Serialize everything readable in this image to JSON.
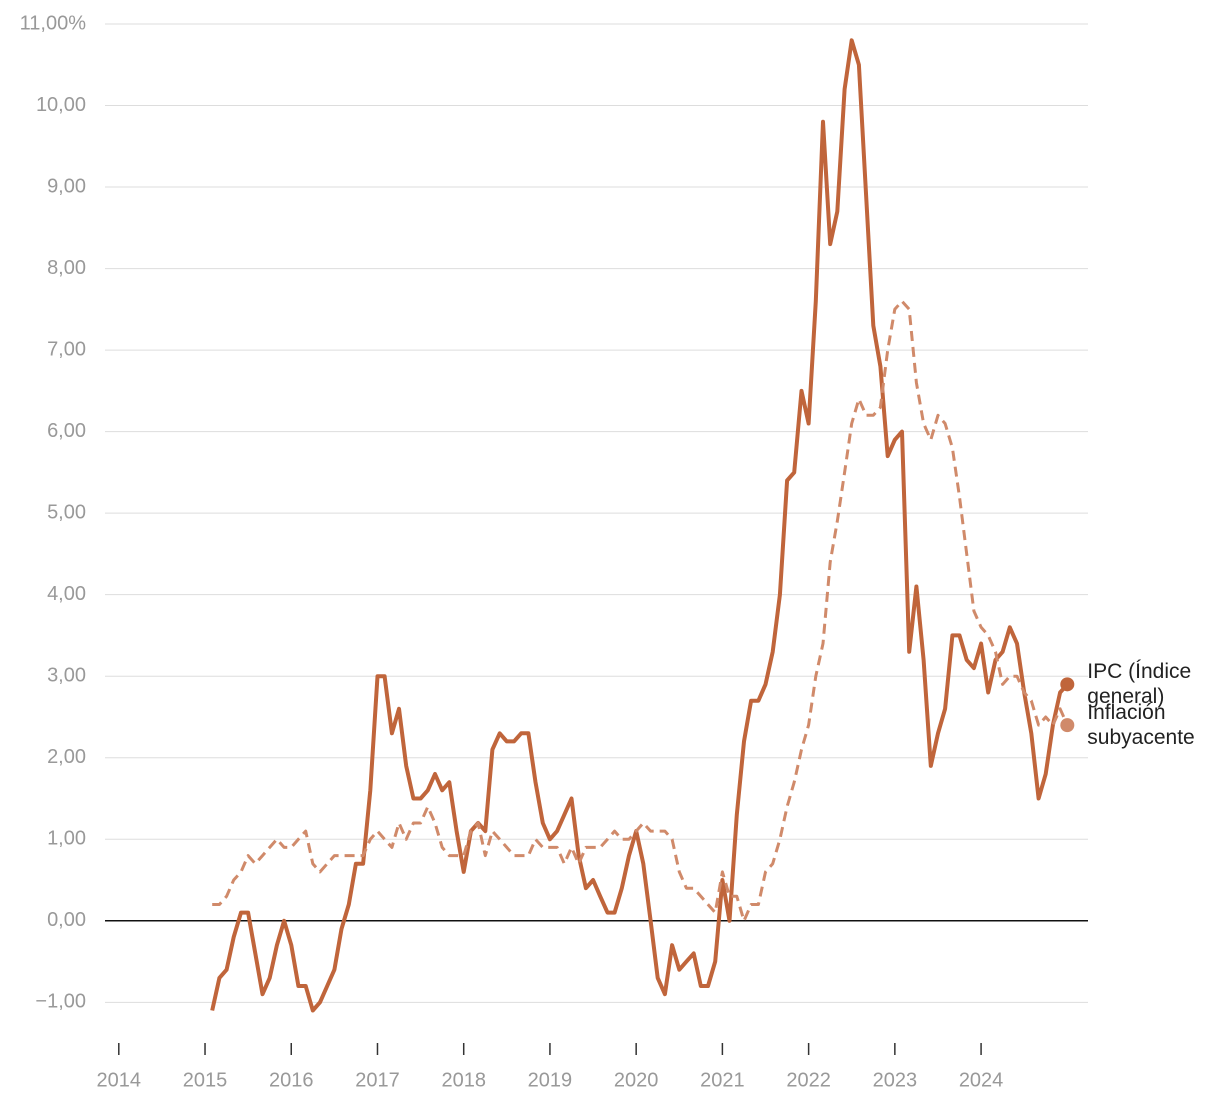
{
  "chart_data": {
    "type": "line",
    "x": [
      2015.083,
      2015.167,
      2015.25,
      2015.333,
      2015.417,
      2015.5,
      2015.583,
      2015.667,
      2015.75,
      2015.833,
      2015.917,
      2016,
      2016.083,
      2016.167,
      2016.25,
      2016.333,
      2016.417,
      2016.5,
      2016.583,
      2016.667,
      2016.75,
      2016.833,
      2016.917,
      2017,
      2017.083,
      2017.167,
      2017.25,
      2017.333,
      2017.417,
      2017.5,
      2017.583,
      2017.667,
      2017.75,
      2017.833,
      2017.917,
      2018,
      2018.083,
      2018.167,
      2018.25,
      2018.333,
      2018.417,
      2018.5,
      2018.583,
      2018.667,
      2018.75,
      2018.833,
      2018.917,
      2019,
      2019.083,
      2019.167,
      2019.25,
      2019.333,
      2019.417,
      2019.5,
      2019.583,
      2019.667,
      2019.75,
      2019.833,
      2019.917,
      2020,
      2020.083,
      2020.167,
      2020.25,
      2020.333,
      2020.417,
      2020.5,
      2020.583,
      2020.667,
      2020.75,
      2020.833,
      2020.917,
      2021,
      2021.083,
      2021.167,
      2021.25,
      2021.333,
      2021.417,
      2021.5,
      2021.583,
      2021.667,
      2021.75,
      2021.833,
      2021.917,
      2022,
      2022.083,
      2022.167,
      2022.25,
      2022.333,
      2022.417,
      2022.5,
      2022.583,
      2022.667,
      2022.75,
      2022.833,
      2022.917,
      2023,
      2023.083,
      2023.167,
      2023.25,
      2023.333,
      2023.417,
      2023.5,
      2023.583,
      2023.667,
      2023.75,
      2023.833,
      2023.917,
      2024,
      2024.083,
      2024.167,
      2024.25,
      2024.333,
      2024.417,
      2024.5,
      2024.583,
      2024.667,
      2024.75,
      2024.833,
      2024.917,
      2025
    ],
    "series": [
      {
        "name": "IPC (Índice general)",
        "color": "#c0653b",
        "dashed": false,
        "values": [
          -1.1,
          -0.7,
          -0.6,
          -0.2,
          0.1,
          0.1,
          -0.4,
          -0.9,
          -0.7,
          -0.3,
          0.0,
          -0.3,
          -0.8,
          -0.8,
          -1.1,
          -1.0,
          -0.8,
          -0.6,
          -0.1,
          0.2,
          0.7,
          0.7,
          1.6,
          3.0,
          3.0,
          2.3,
          2.6,
          1.9,
          1.5,
          1.5,
          1.6,
          1.8,
          1.6,
          1.7,
          1.1,
          0.6,
          1.1,
          1.2,
          1.1,
          2.1,
          2.3,
          2.2,
          2.2,
          2.3,
          2.3,
          1.7,
          1.2,
          1.0,
          1.1,
          1.3,
          1.5,
          0.8,
          0.4,
          0.5,
          0.3,
          0.1,
          0.1,
          0.4,
          0.8,
          1.1,
          0.7,
          0.0,
          -0.7,
          -0.9,
          -0.3,
          -0.6,
          -0.5,
          -0.4,
          -0.8,
          -0.8,
          -0.5,
          0.5,
          0.0,
          1.3,
          2.2,
          2.7,
          2.7,
          2.9,
          3.3,
          4.0,
          5.4,
          5.5,
          6.5,
          6.1,
          7.6,
          9.8,
          8.3,
          8.7,
          10.2,
          10.8,
          10.5,
          8.9,
          7.3,
          6.8,
          5.7,
          5.9,
          6.0,
          3.3,
          4.1,
          3.2,
          1.9,
          2.3,
          2.6,
          3.5,
          3.5,
          3.2,
          3.1,
          3.4,
          2.8,
          3.2,
          3.3,
          3.6,
          3.4,
          2.8,
          2.3,
          1.5,
          1.8,
          2.4,
          2.8,
          2.9
        ]
      },
      {
        "name": "Inflación subyacente",
        "color": "#d08a6a",
        "dashed": true,
        "values": [
          0.2,
          0.2,
          0.3,
          0.5,
          0.6,
          0.8,
          0.7,
          0.8,
          0.9,
          1.0,
          0.9,
          0.9,
          1.0,
          1.1,
          0.7,
          0.6,
          0.7,
          0.8,
          0.8,
          0.8,
          0.8,
          0.8,
          1.0,
          1.1,
          1.0,
          0.9,
          1.2,
          1.0,
          1.2,
          1.2,
          1.4,
          1.2,
          0.9,
          0.8,
          0.8,
          0.8,
          1.1,
          1.2,
          0.8,
          1.1,
          1.0,
          0.9,
          0.8,
          0.8,
          0.8,
          1.0,
          0.9,
          0.9,
          0.9,
          0.7,
          0.9,
          0.7,
          0.9,
          0.9,
          0.9,
          1.0,
          1.1,
          1.0,
          1.0,
          1.1,
          1.2,
          1.1,
          1.1,
          1.1,
          1.0,
          0.6,
          0.4,
          0.4,
          0.3,
          0.2,
          0.1,
          0.6,
          0.3,
          0.3,
          0.0,
          0.2,
          0.2,
          0.6,
          0.7,
          1.0,
          1.4,
          1.7,
          2.1,
          2.4,
          3.0,
          3.4,
          4.4,
          4.9,
          5.5,
          6.1,
          6.4,
          6.2,
          6.2,
          6.3,
          7.0,
          7.5,
          7.6,
          7.5,
          6.6,
          6.1,
          5.9,
          6.2,
          6.1,
          5.8,
          5.2,
          4.5,
          3.8,
          3.6,
          3.5,
          3.3,
          2.9,
          3.0,
          3.0,
          2.8,
          2.7,
          2.4,
          2.5,
          2.4,
          2.6,
          2.4
        ]
      }
    ],
    "xlim": [
      2013.84,
      2025.24
    ],
    "xticks": [
      2014,
      2015,
      2016,
      2017,
      2018,
      2019,
      2020,
      2021,
      2022,
      2023,
      2024
    ],
    "ylim": [
      -1.45,
      11
    ],
    "yticks": [
      {
        "value": -1,
        "label": "−1,00"
      },
      {
        "value": 0,
        "label": "0,00"
      },
      {
        "value": 1,
        "label": "1,00"
      },
      {
        "value": 2,
        "label": "2,00"
      },
      {
        "value": 3,
        "label": "3,00"
      },
      {
        "value": 4,
        "label": "4,00"
      },
      {
        "value": 5,
        "label": "5,00"
      },
      {
        "value": 6,
        "label": "6,00"
      },
      {
        "value": 7,
        "label": "7,00"
      },
      {
        "value": 8,
        "label": "8,00"
      },
      {
        "value": 9,
        "label": "9,00"
      },
      {
        "value": 10,
        "label": "10,00"
      },
      {
        "value": 11,
        "label": "11,00%"
      }
    ],
    "grid": true
  }
}
